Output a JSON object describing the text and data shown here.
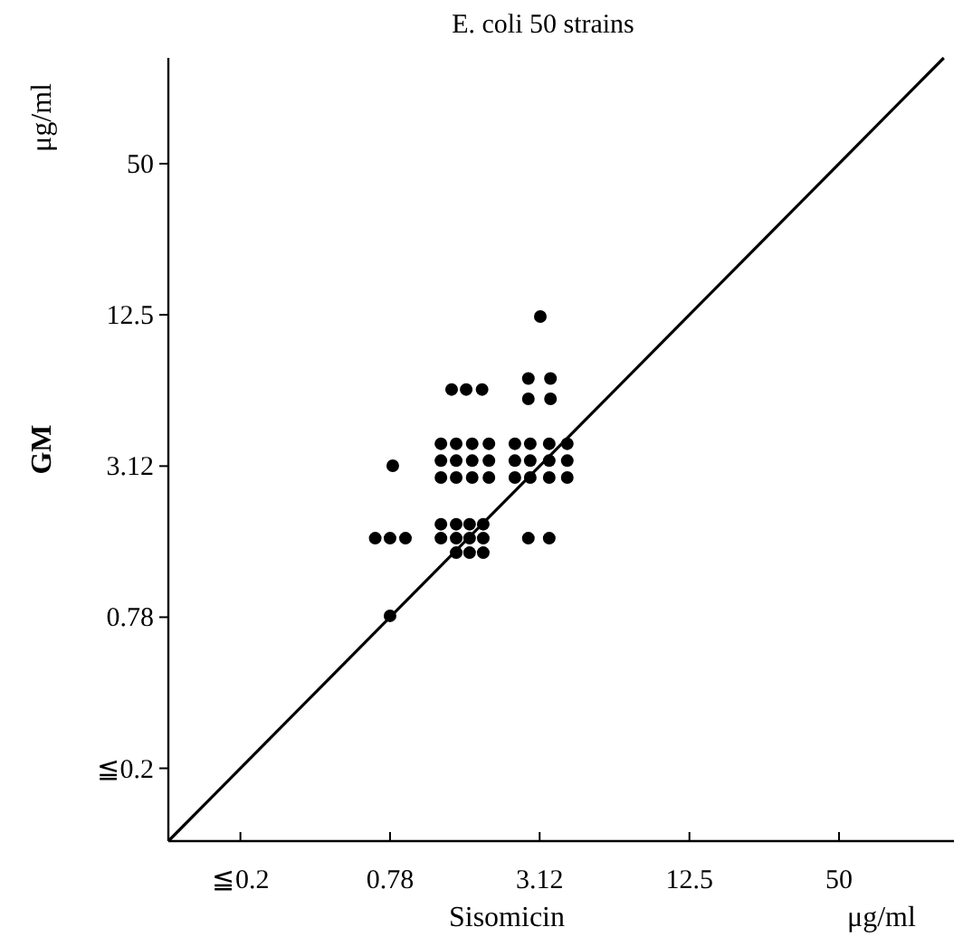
{
  "chart_data": {
    "type": "scatter",
    "title": "E. coli 50 strains",
    "xlabel": "Sisomicin",
    "ylabel": "GM",
    "annotations": [
      "μg/ml",
      "μg/ml"
    ],
    "xlim": [
      0.1,
      145
    ],
    "ylim": [
      0.1,
      132
    ],
    "log": "xy",
    "grid": false,
    "marker": "circle",
    "xticks": [
      {
        "value": 0.195,
        "label": "≦0.2"
      },
      0.78,
      3.12,
      12.5,
      50
    ],
    "yticks": [
      {
        "value": 0.195,
        "label": "≦0.2"
      },
      0.78,
      3.12,
      12.5,
      50
    ],
    "series": [
      {
        "type": "line",
        "color": "#000000",
        "marker": "none",
        "x": [
          0.1,
          132
        ],
        "values": [
          0.1,
          132
        ]
      },
      {
        "color": "#000000",
        "x": [
          3.14,
          1.38,
          1.58,
          1.83,
          2.81,
          3.45,
          2.81,
          3.45,
          1.25,
          1.44,
          1.67,
          1.95,
          1.25,
          1.44,
          1.67,
          1.95,
          1.25,
          1.44,
          1.67,
          1.95,
          2.48,
          2.86,
          3.41,
          4.03,
          2.48,
          2.86,
          3.41,
          4.03,
          2.48,
          2.86,
          3.41,
          4.03,
          0.8,
          0.68,
          0.78,
          0.9,
          1.25,
          1.44,
          1.63,
          1.85,
          1.25,
          1.44,
          1.63,
          1.85,
          1.44,
          1.63,
          1.85,
          2.81,
          3.41,
          0.78
        ],
        "values": [
          12.3,
          6.3,
          6.3,
          6.3,
          6.97,
          6.97,
          5.78,
          5.78,
          3.83,
          3.83,
          3.83,
          3.83,
          3.28,
          3.28,
          3.28,
          3.28,
          2.81,
          2.81,
          2.81,
          2.81,
          3.83,
          3.83,
          3.83,
          3.83,
          3.28,
          3.28,
          3.28,
          3.28,
          2.81,
          2.81,
          2.81,
          2.81,
          3.13,
          1.61,
          1.61,
          1.61,
          1.83,
          1.83,
          1.83,
          1.83,
          1.61,
          1.61,
          1.61,
          1.61,
          1.41,
          1.41,
          1.41,
          1.61,
          1.61,
          0.79
        ]
      }
    ]
  }
}
